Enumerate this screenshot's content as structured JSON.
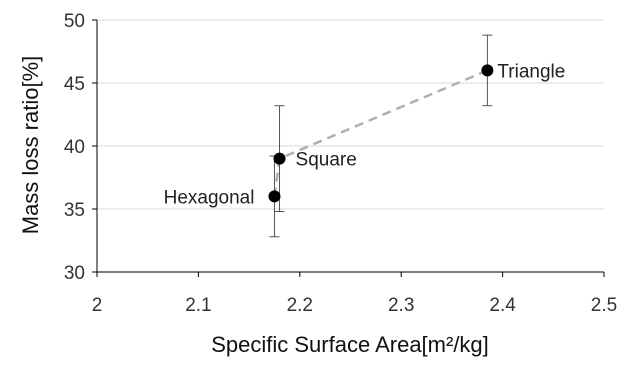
{
  "chart_data": {
    "type": "scatter",
    "xlabel": "Specific Surface Area[m²/kg]",
    "ylabel": "Mass loss ratio[%]",
    "xlim": [
      2.0,
      2.5
    ],
    "ylim": [
      30,
      50
    ],
    "x_ticks": [
      "2",
      "2.1",
      "2.2",
      "2.3",
      "2.4",
      "2.5"
    ],
    "y_ticks": [
      "30",
      "35",
      "40",
      "45",
      "50"
    ],
    "grid": "horizontal",
    "points": [
      {
        "label": "Hexagonal",
        "x": 2.175,
        "y": 36.0,
        "err_low": 32.8,
        "err_high": 39.2
      },
      {
        "label": "Square",
        "x": 2.18,
        "y": 39.0,
        "err_low": 34.8,
        "err_high": 43.2
      },
      {
        "label": "Triangle",
        "x": 2.385,
        "y": 46.0,
        "err_low": 43.2,
        "err_high": 48.8
      }
    ],
    "trendline": {
      "style": "dashed",
      "color": "#b0b0b0"
    },
    "colors": {
      "marker": "#000000",
      "error_bar": "#555555",
      "grid": "#d9d9d9",
      "axis": "#000000"
    }
  }
}
